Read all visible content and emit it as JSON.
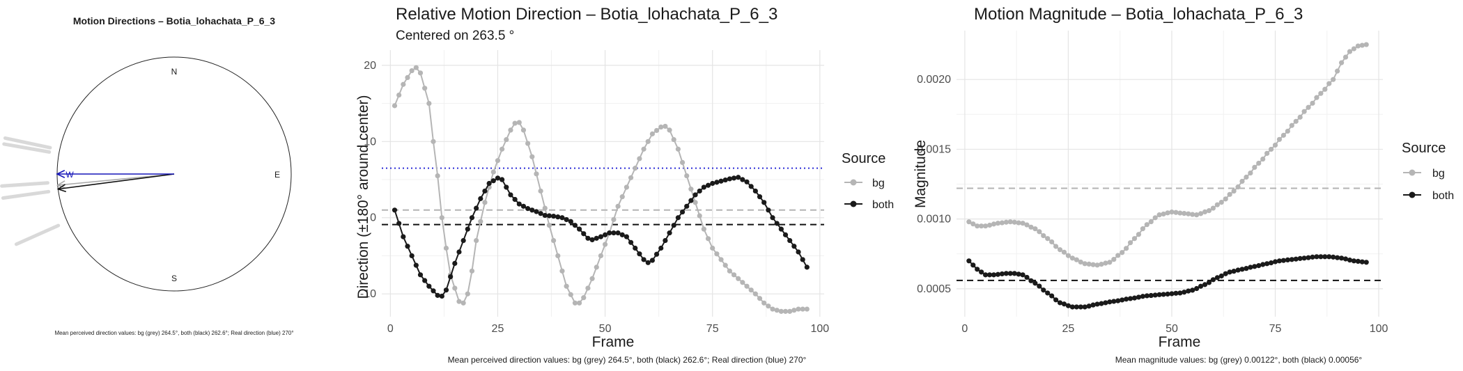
{
  "compass": {
    "title": "Motion Directions – Botia_lohachata_P_6_3",
    "cardinals": {
      "n": "N",
      "e": "E",
      "s": "S",
      "w": "W"
    },
    "caption": "Mean perceived direction values: bg (grey) 264.5°, both (black) 262.6°; Real direction (blue) 270°",
    "arrows": [
      {
        "name": "bg",
        "direction_deg": 264.5,
        "color": "#a8a8a8"
      },
      {
        "name": "both",
        "direction_deg": 262.6,
        "color": "#111111"
      },
      {
        "name": "real",
        "direction_deg": 270,
        "color": "#1515b8"
      }
    ],
    "outer_ticks_deg": [
      246,
      262,
      266,
      280,
      282
    ]
  },
  "chart_data": [
    {
      "type": "line",
      "title": "Relative Motion Direction – Botia_lohachata_P_6_3",
      "subtitle": "Centered on  263.5 °",
      "xlabel": "Frame",
      "ylabel": "Direction (±180° around center)",
      "xlim": [
        -2,
        101
      ],
      "ylim": [
        -13,
        22
      ],
      "xticks": [
        0,
        25,
        50,
        75,
        100
      ],
      "yticks": [
        -10,
        0,
        10,
        20
      ],
      "grid": true,
      "legend": {
        "title": "Source",
        "position": "right"
      },
      "caption": "Mean perceived direction values: bg (grey) 264.5°, both (black) 262.6°; Real direction (blue) 270°",
      "hlines": [
        {
          "y": 1.0,
          "color": "#b3b3b3",
          "style": "dashed"
        },
        {
          "y": -0.9,
          "color": "#111111",
          "style": "dashed"
        },
        {
          "y": 6.5,
          "color": "#2b2bd6",
          "style": "dotted"
        }
      ],
      "series": [
        {
          "name": "bg",
          "color": "#b5b5b5",
          "knots": [
            [
              1,
              14.7
            ],
            [
              3,
              17.5
            ],
            [
              5,
              19.3
            ],
            [
              6,
              19.7
            ],
            [
              7,
              19.0
            ],
            [
              9,
              15
            ],
            [
              10,
              10
            ],
            [
              11,
              5.5
            ],
            [
              12,
              0
            ],
            [
              13,
              -4
            ],
            [
              14,
              -7.5
            ],
            [
              16,
              -11
            ],
            [
              17,
              -11.2
            ],
            [
              18,
              -10
            ],
            [
              19,
              -7
            ],
            [
              20,
              -3
            ],
            [
              22,
              2
            ],
            [
              24,
              6
            ],
            [
              26,
              9
            ],
            [
              28,
              11.5
            ],
            [
              29,
              12.4
            ],
            [
              30,
              12.5
            ],
            [
              31,
              11.5
            ],
            [
              33,
              8
            ],
            [
              35,
              3.5
            ],
            [
              37,
              -1
            ],
            [
              39,
              -5
            ],
            [
              41,
              -9
            ],
            [
              43,
              -11.2
            ],
            [
              44,
              -11.2
            ],
            [
              45,
              -10.5
            ],
            [
              47,
              -8
            ],
            [
              49,
              -5
            ],
            [
              51,
              -2
            ],
            [
              53,
              1.5
            ],
            [
              55,
              4
            ],
            [
              57,
              6.5
            ],
            [
              59,
              9
            ],
            [
              61,
              11
            ],
            [
              63,
              11.9
            ],
            [
              64,
              12
            ],
            [
              65,
              11.5
            ],
            [
              67,
              9
            ],
            [
              69,
              5.5
            ],
            [
              71,
              2
            ],
            [
              73,
              -1.5
            ],
            [
              75,
              -4
            ],
            [
              77,
              -5.5
            ],
            [
              79,
              -7
            ],
            [
              81,
              -8
            ],
            [
              83,
              -9
            ],
            [
              85,
              -10
            ],
            [
              87,
              -11.2
            ],
            [
              89,
              -12
            ],
            [
              91,
              -12.3
            ],
            [
              93,
              -12.3
            ],
            [
              95,
              -12
            ],
            [
              97,
              -12
            ]
          ]
        },
        {
          "name": "both",
          "color": "#1a1a1a",
          "knots": [
            [
              1,
              1.0
            ],
            [
              3,
              -2.5
            ],
            [
              5,
              -5
            ],
            [
              7,
              -7.5
            ],
            [
              9,
              -9
            ],
            [
              11,
              -10.2
            ],
            [
              12,
              -10.3
            ],
            [
              13,
              -9.5
            ],
            [
              15,
              -6
            ],
            [
              17,
              -3
            ],
            [
              19,
              0
            ],
            [
              21,
              2.5
            ],
            [
              23,
              4.5
            ],
            [
              25,
              5.2
            ],
            [
              26,
              5
            ],
            [
              28,
              3
            ],
            [
              30,
              1.8
            ],
            [
              32,
              1.2
            ],
            [
              34,
              0.8
            ],
            [
              36,
              0.3
            ],
            [
              38,
              0.2
            ],
            [
              40,
              0
            ],
            [
              42,
              -0.5
            ],
            [
              44,
              -1.5
            ],
            [
              46,
              -2.7
            ],
            [
              47,
              -2.9
            ],
            [
              49,
              -2.5
            ],
            [
              51,
              -2
            ],
            [
              53,
              -2
            ],
            [
              55,
              -2.5
            ],
            [
              57,
              -4
            ],
            [
              59,
              -5.5
            ],
            [
              60,
              -5.9
            ],
            [
              61,
              -5.6
            ],
            [
              63,
              -4
            ],
            [
              65,
              -2
            ],
            [
              67,
              0
            ],
            [
              69,
              1.5
            ],
            [
              71,
              3
            ],
            [
              73,
              4
            ],
            [
              75,
              4.5
            ],
            [
              77,
              4.8
            ],
            [
              79,
              5.1
            ],
            [
              81,
              5.3
            ],
            [
              83,
              4.7
            ],
            [
              85,
              3.5
            ],
            [
              87,
              2
            ],
            [
              89,
              0
            ],
            [
              91,
              -1.5
            ],
            [
              93,
              -3
            ],
            [
              95,
              -4.5
            ],
            [
              97,
              -6.5
            ]
          ]
        }
      ]
    },
    {
      "type": "line",
      "title": "Motion Magnitude – Botia_lohachata_P_6_3",
      "xlabel": "Frame",
      "ylabel": "Magnitude",
      "xlim": [
        -2,
        101
      ],
      "ylim": [
        0.0003,
        0.00235
      ],
      "xticks": [
        0,
        25,
        50,
        75,
        100
      ],
      "yticks": [
        0.0005,
        0.001,
        0.0015,
        0.002
      ],
      "ytick_labels": [
        "0.0005",
        "0.0010",
        "0.0015",
        "0.0020"
      ],
      "grid": true,
      "legend": {
        "title": "Source",
        "position": "right"
      },
      "caption": "Mean magnitude values: bg (grey) 0.00122°, both (black) 0.00056°",
      "hlines": [
        {
          "y": 0.00122,
          "color": "#b3b3b3",
          "style": "dashed"
        },
        {
          "y": 0.00056,
          "color": "#111111",
          "style": "dashed"
        }
      ],
      "series": [
        {
          "name": "bg",
          "color": "#b5b5b5",
          "knots": [
            [
              1,
              0.00098
            ],
            [
              3,
              0.00095
            ],
            [
              5,
              0.00095
            ],
            [
              8,
              0.00097
            ],
            [
              11,
              0.00098
            ],
            [
              14,
              0.00097
            ],
            [
              17,
              0.00093
            ],
            [
              20,
              0.00086
            ],
            [
              23,
              0.00078
            ],
            [
              26,
              0.00072
            ],
            [
              29,
              0.00068
            ],
            [
              32,
              0.00067
            ],
            [
              35,
              0.00069
            ],
            [
              38,
              0.00076
            ],
            [
              41,
              0.00086
            ],
            [
              44,
              0.00096
            ],
            [
              47,
              0.00103
            ],
            [
              50,
              0.00105
            ],
            [
              53,
              0.00104
            ],
            [
              56,
              0.00103
            ],
            [
              59,
              0.00106
            ],
            [
              62,
              0.00112
            ],
            [
              65,
              0.0012
            ],
            [
              68,
              0.0013
            ],
            [
              71,
              0.0014
            ],
            [
              74,
              0.0015
            ],
            [
              77,
              0.0016
            ],
            [
              80,
              0.0017
            ],
            [
              83,
              0.0018
            ],
            [
              86,
              0.0019
            ],
            [
              89,
              0.002
            ],
            [
              91,
              0.00212
            ],
            [
              93,
              0.0022
            ],
            [
              95,
              0.00224
            ],
            [
              97,
              0.00225
            ]
          ]
        },
        {
          "name": "both",
          "color": "#1a1a1a",
          "knots": [
            [
              1,
              0.0007
            ],
            [
              3,
              0.00064
            ],
            [
              5,
              0.0006
            ],
            [
              7,
              0.0006
            ],
            [
              10,
              0.00061
            ],
            [
              12,
              0.00061
            ],
            [
              14,
              0.0006
            ],
            [
              17,
              0.00054
            ],
            [
              20,
              0.00047
            ],
            [
              23,
              0.0004
            ],
            [
              26,
              0.00037
            ],
            [
              29,
              0.00037
            ],
            [
              32,
              0.00039
            ],
            [
              36,
              0.00041
            ],
            [
              40,
              0.00043
            ],
            [
              44,
              0.00045
            ],
            [
              48,
              0.00046
            ],
            [
              52,
              0.00047
            ],
            [
              55,
              0.00049
            ],
            [
              58,
              0.00053
            ],
            [
              61,
              0.00058
            ],
            [
              64,
              0.00062
            ],
            [
              67,
              0.00064
            ],
            [
              70,
              0.00066
            ],
            [
              73,
              0.00068
            ],
            [
              76,
              0.0007
            ],
            [
              79,
              0.00071
            ],
            [
              82,
              0.00072
            ],
            [
              85,
              0.00073
            ],
            [
              88,
              0.00073
            ],
            [
              91,
              0.00072
            ],
            [
              94,
              0.0007
            ],
            [
              97,
              0.00069
            ]
          ]
        }
      ]
    }
  ]
}
